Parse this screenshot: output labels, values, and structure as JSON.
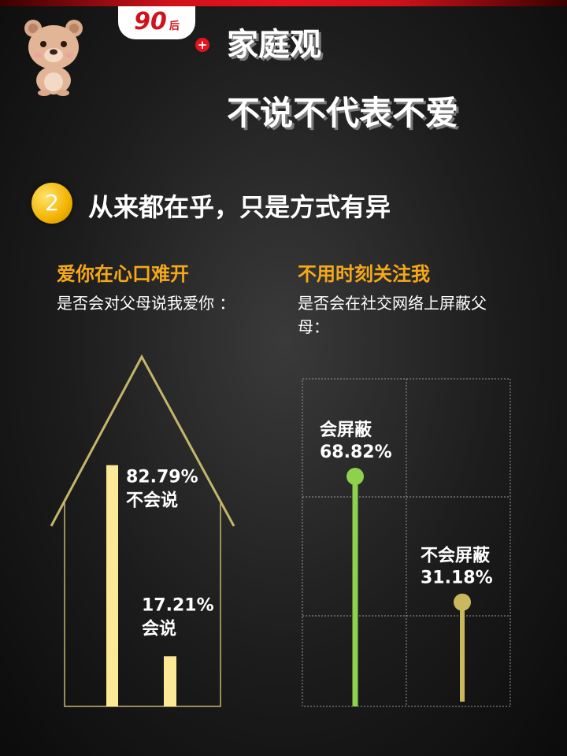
{
  "header": {
    "badge_number": "90",
    "badge_suffix": "后",
    "title_line1": "家庭观",
    "title_line2": "不说不代表不爱"
  },
  "section": {
    "number": "2",
    "title": "从来都在乎，只是方式有异"
  },
  "left_panel": {
    "heading": "爱你在心口难开",
    "question": "是否会对父母说我爱你 ："
  },
  "right_panel": {
    "heading": "不用时刻关注我",
    "question": "是否会在社交网络上屏蔽父母："
  },
  "colors": {
    "accent_orange": "#f5a91a",
    "bar_yellow": "#fbe995",
    "roof_line": "#c4b66a",
    "green": "#8dd14d",
    "olive": "#c9b85e"
  },
  "chart_data": [
    {
      "type": "bar",
      "categories": [
        "不会说",
        "会说"
      ],
      "values": [
        82.79,
        17.21
      ],
      "labels": [
        "82.79%",
        "17.21%"
      ],
      "ylim": [
        0,
        100
      ]
    },
    {
      "type": "bar",
      "categories": [
        "会屏蔽",
        "不会屏蔽"
      ],
      "values": [
        68.82,
        31.18
      ],
      "labels": [
        "68.82%",
        "31.18%"
      ],
      "ylim": [
        0,
        100
      ]
    }
  ]
}
